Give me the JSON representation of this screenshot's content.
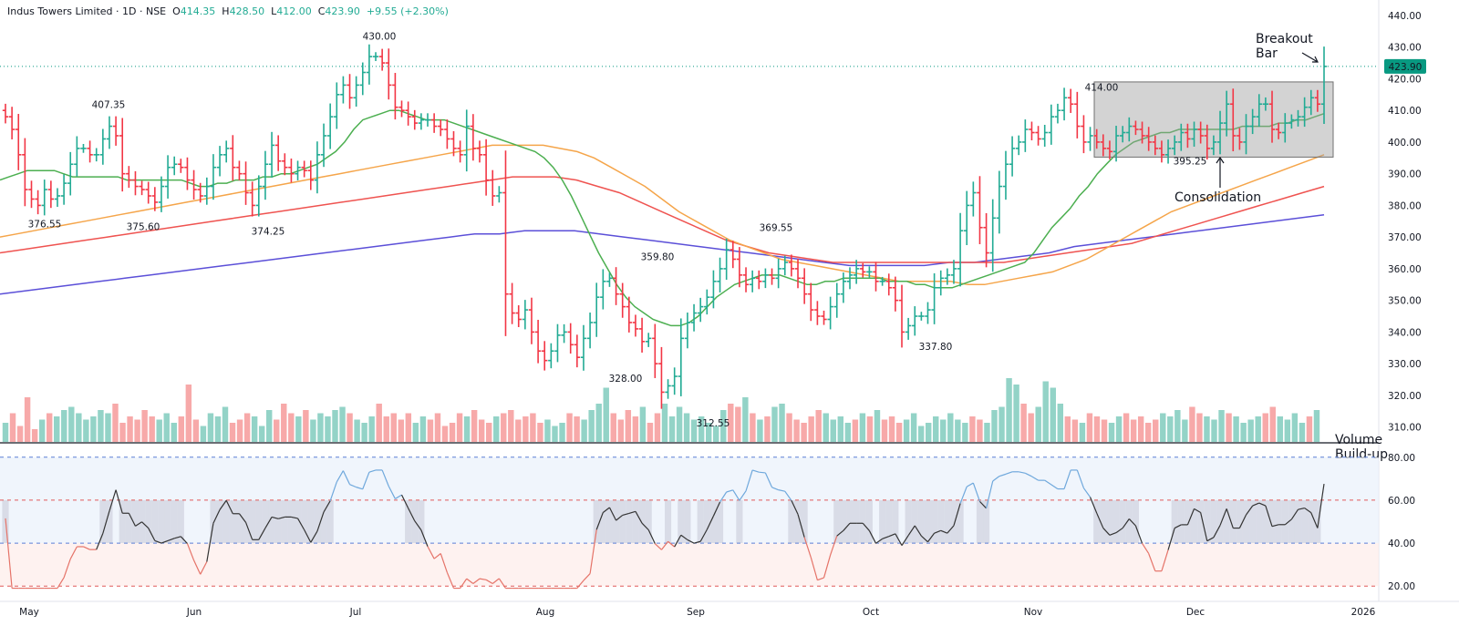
{
  "header": {
    "title": "Indus Towers Limited · 1D · NSE",
    "o_label": "O",
    "o": "414.35",
    "h_label": "H",
    "h": "428.50",
    "l_label": "L",
    "l": "412.00",
    "c_label": "C",
    "c": "423.90",
    "change": "+9.55 (+2.30%)"
  },
  "colors": {
    "up": "#22ab94",
    "down": "#f23645",
    "sma20": "#4caf50",
    "sma50": "#f5a54a",
    "sma100": "#ef5350",
    "sma200": "#5b4fd8",
    "vol_up": "#93d3c7",
    "vol_down": "#f7a9a9",
    "rsi_line": "#333333",
    "rsi_over": "#6fa8dc",
    "rsi_under": "#e57368",
    "price_badge": "#089981"
  },
  "chart_data": {
    "type": "ohlc",
    "price_axis": {
      "range": [
        305,
        442
      ],
      "ticks": [
        "310.00",
        "320.00",
        "330.00",
        "340.00",
        "350.00",
        "360.00",
        "370.00",
        "380.00",
        "390.00",
        "400.00",
        "410.00",
        "420.00",
        "430.00",
        "440.00"
      ]
    },
    "last_price": "423.90",
    "x_labels": [
      "May",
      "Jun",
      "Jul",
      "Aug",
      "Sep",
      "Oct",
      "Nov",
      "Dec",
      "2026"
    ],
    "closes": [
      408,
      404,
      396,
      385,
      382,
      380,
      385,
      382,
      383,
      387,
      393,
      398,
      398,
      396,
      396,
      401,
      405,
      402,
      390,
      388,
      386,
      385,
      383,
      381,
      386,
      392,
      393,
      392,
      388,
      385,
      383,
      386,
      392,
      396,
      398,
      392,
      390,
      384,
      380,
      386,
      393,
      399,
      394,
      392,
      390,
      392,
      391,
      388,
      396,
      402,
      408,
      415,
      418,
      414,
      418,
      422,
      427,
      427,
      425,
      418,
      411,
      410,
      408,
      406,
      407,
      407,
      405,
      404,
      401,
      398,
      396,
      405,
      398,
      396,
      388,
      383,
      384,
      352,
      346,
      344,
      347,
      340,
      334,
      331,
      334,
      339,
      340,
      336,
      332,
      338,
      343,
      351,
      356,
      357,
      352,
      348,
      343,
      341,
      337,
      338,
      330,
      321,
      323,
      326,
      338,
      343,
      346,
      348,
      351,
      356,
      360,
      366,
      363,
      358,
      355,
      357,
      356,
      358,
      357,
      360,
      362,
      360,
      357,
      352,
      347,
      345,
      344,
      348,
      352,
      356,
      358,
      360,
      359,
      359,
      356,
      356,
      354,
      350,
      340,
      342,
      345,
      345,
      347,
      354,
      357,
      358,
      360,
      372,
      380,
      384,
      373,
      365,
      376,
      386,
      393,
      398,
      400,
      404,
      403,
      401,
      403,
      408,
      410,
      414,
      412,
      405,
      400,
      402,
      400,
      398,
      397,
      402,
      403,
      405,
      404,
      402,
      400,
      398,
      396,
      398,
      400,
      403,
      401,
      404,
      402,
      398,
      400,
      406,
      412,
      402,
      400,
      405,
      408,
      412,
      412,
      404,
      403,
      406,
      407,
      408,
      411,
      414,
      412,
      423.9
    ],
    "sma20": [
      388,
      389,
      390,
      391,
      391,
      391,
      391,
      390,
      389,
      389,
      389,
      389,
      389,
      389,
      388,
      388,
      388,
      388,
      388,
      388,
      388,
      387,
      386,
      386,
      387,
      387,
      388,
      388,
      388,
      389,
      389,
      390,
      390,
      391,
      392,
      393,
      395,
      397,
      400,
      404,
      407,
      408,
      409,
      410,
      410,
      409,
      408,
      407,
      407,
      407,
      406,
      405,
      404,
      403,
      402,
      401,
      400,
      399,
      398,
      397,
      395,
      392,
      388,
      383,
      377,
      371,
      365,
      360,
      355,
      351,
      348,
      346,
      344,
      343,
      342,
      342,
      343,
      345,
      348,
      351,
      353,
      355,
      356,
      357,
      358,
      358,
      358,
      357,
      356,
      355,
      355,
      356,
      356,
      357,
      357,
      357,
      357,
      357,
      356,
      356,
      356,
      355,
      355,
      354,
      354,
      354,
      355,
      356,
      357,
      358,
      359,
      360,
      361,
      362,
      365,
      369,
      373,
      376,
      379,
      383,
      386,
      390,
      393,
      396,
      398,
      400,
      401,
      402,
      403,
      403,
      404,
      404,
      404,
      404,
      404,
      404,
      404,
      405,
      405,
      405,
      405,
      406,
      406,
      407,
      407,
      408,
      409
    ],
    "sma50": [
      370,
      371,
      372,
      373,
      374,
      375,
      376,
      377,
      378,
      379,
      380,
      381,
      382,
      383,
      384,
      385,
      386,
      387,
      388,
      389,
      390,
      391,
      392,
      393,
      394,
      395,
      396,
      397,
      398,
      399,
      399,
      399,
      399,
      398,
      397,
      395,
      392,
      389,
      386,
      382,
      378,
      375,
      372,
      369,
      367,
      365,
      363,
      362,
      361,
      360,
      359,
      358,
      357,
      356,
      356,
      356,
      356,
      355,
      355,
      356,
      357,
      358,
      359,
      361,
      363,
      366,
      369,
      372,
      375,
      378,
      380,
      382,
      384,
      386,
      388,
      390,
      392,
      394,
      396
    ],
    "sma100": [
      365,
      366,
      367,
      368,
      369,
      370,
      371,
      372,
      373,
      374,
      375,
      376,
      377,
      378,
      379,
      380,
      381,
      382,
      383,
      384,
      385,
      386,
      387,
      388,
      389,
      389,
      389,
      388,
      386,
      384,
      381,
      378,
      375,
      372,
      369,
      367,
      365,
      364,
      363,
      362,
      362,
      362,
      362,
      362,
      362,
      362,
      362,
      362,
      363,
      364,
      365,
      366,
      367,
      368,
      370,
      372,
      374,
      376,
      378,
      380,
      382,
      384,
      386
    ],
    "sma200": [
      352,
      353,
      354,
      355,
      356,
      357,
      358,
      359,
      360,
      361,
      362,
      363,
      364,
      365,
      366,
      367,
      368,
      369,
      370,
      371,
      371,
      372,
      372,
      372,
      371,
      370,
      369,
      368,
      367,
      366,
      365,
      364,
      363,
      362,
      361,
      361,
      361,
      361,
      362,
      362,
      363,
      364,
      365,
      367,
      368,
      369,
      370,
      371,
      372,
      373,
      374,
      375,
      376,
      377
    ],
    "volume": [
      30,
      45,
      25,
      70,
      20,
      35,
      45,
      40,
      50,
      55,
      45,
      35,
      40,
      50,
      45,
      60,
      30,
      40,
      35,
      50,
      40,
      35,
      45,
      30,
      40,
      90,
      35,
      25,
      45,
      40,
      55,
      30,
      35,
      45,
      40,
      25,
      50,
      35,
      60,
      45,
      40,
      50,
      35,
      45,
      40,
      50,
      55,
      45,
      35,
      30,
      40,
      60,
      40,
      45,
      35,
      45,
      30,
      40,
      35,
      45,
      25,
      30,
      45,
      40,
      50,
      35,
      30,
      40,
      45,
      50,
      35,
      40,
      45,
      30,
      35,
      25,
      30,
      45,
      40,
      35,
      50,
      60,
      85,
      45,
      35,
      50,
      40,
      55,
      30,
      45,
      60,
      40,
      55,
      45,
      35,
      40,
      30,
      25,
      50,
      60,
      55,
      70,
      45,
      35,
      40,
      55,
      60,
      45,
      35,
      30,
      40,
      50,
      45,
      35,
      40,
      30,
      35,
      45,
      40,
      50,
      35,
      40,
      30,
      35,
      45,
      25,
      30,
      40,
      35,
      45,
      35,
      30,
      40,
      35,
      30,
      50,
      55,
      100,
      90,
      60,
      45,
      55,
      95,
      85,
      60,
      40,
      35,
      30,
      45,
      40,
      35,
      30,
      40,
      45,
      35,
      40,
      30,
      35,
      45,
      40,
      50,
      35,
      55,
      45,
      40,
      35,
      50,
      45,
      40,
      30,
      35,
      40,
      45,
      55,
      40,
      35,
      45,
      30,
      40,
      50
    ],
    "rsi": {
      "levels": [
        "80.00",
        "60.00",
        "40.00",
        "20.00"
      ],
      "range": [
        15,
        85
      ]
    },
    "annotations": {
      "highs": [
        "407.35",
        "430.00",
        "369.55",
        "359.80",
        "414.00"
      ],
      "lows": [
        "376.55",
        "375.60",
        "374.25",
        "328.00",
        "312.55",
        "337.80",
        "395.25"
      ],
      "breakout": [
        "Breakout",
        "Bar"
      ],
      "consolidation": "Consolidation",
      "volume_note": [
        "Volume",
        "Build-up"
      ]
    }
  }
}
